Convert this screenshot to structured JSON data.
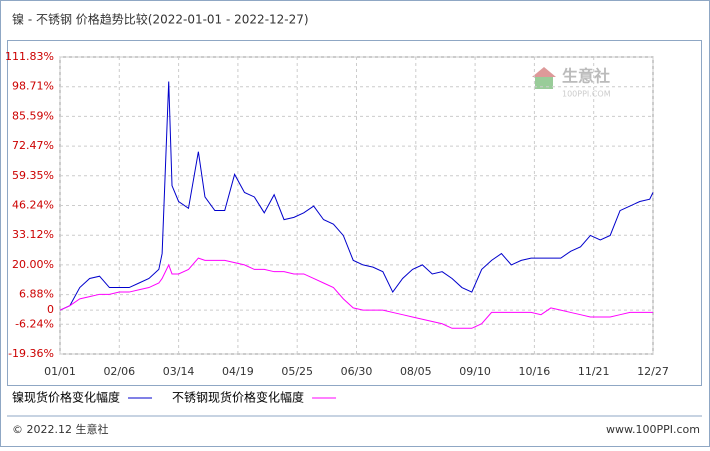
{
  "chart_data": {
    "type": "line",
    "title": "镍 - 不锈钢 价格趋势比较(2022-01-01 - 2022-12-27)",
    "x": [
      "01/01",
      "01/07",
      "01/13",
      "01/19",
      "01/25",
      "01/31",
      "02/06",
      "02/12",
      "02/18",
      "02/24",
      "03/02",
      "03/04",
      "03/08",
      "03/10",
      "03/14",
      "03/20",
      "03/26",
      "03/30",
      "04/05",
      "04/11",
      "04/17",
      "04/23",
      "04/29",
      "05/05",
      "05/11",
      "05/17",
      "05/23",
      "05/29",
      "06/04",
      "06/10",
      "06/16",
      "06/22",
      "06/28",
      "07/04",
      "07/10",
      "07/16",
      "07/22",
      "07/28",
      "08/03",
      "08/09",
      "08/15",
      "08/21",
      "08/27",
      "09/02",
      "09/08",
      "09/14",
      "09/20",
      "09/26",
      "10/02",
      "10/08",
      "10/14",
      "10/20",
      "10/26",
      "11/01",
      "11/07",
      "11/13",
      "11/19",
      "11/25",
      "12/01",
      "12/07",
      "12/13",
      "12/19",
      "12/25",
      "12/27"
    ],
    "series": [
      {
        "name": "镍现货价格变化幅度",
        "color": "#0000cc",
        "values": [
          0,
          2,
          10,
          14,
          15,
          10,
          10,
          10,
          12,
          14,
          18,
          25,
          101,
          55,
          48,
          45,
          70,
          50,
          44,
          44,
          60,
          52,
          50,
          43,
          51,
          40,
          41,
          43,
          46,
          40,
          38,
          33,
          22,
          20,
          19,
          17,
          8,
          14,
          18,
          20,
          16,
          17,
          14,
          10,
          8,
          18,
          22,
          25,
          20,
          22,
          23,
          23,
          23,
          23,
          26,
          28,
          33,
          31,
          33,
          44,
          46,
          48,
          49,
          52
        ]
      },
      {
        "name": "不锈钢现货价格变化幅度",
        "color": "#ff00ff",
        "values": [
          0,
          2,
          5,
          6,
          7,
          7,
          8,
          8,
          9,
          10,
          12,
          14,
          20,
          16,
          16,
          18,
          23,
          22,
          22,
          22,
          21,
          20,
          18,
          18,
          17,
          17,
          16,
          16,
          14,
          12,
          10,
          5,
          1,
          0,
          0,
          0,
          -1,
          -2,
          -3,
          -4,
          -5,
          -6,
          -8,
          -8,
          -8,
          -6,
          -1,
          -1,
          -1,
          -1,
          -1,
          -2,
          1,
          0,
          -1,
          -2,
          -3,
          -3,
          -3,
          -2,
          -1,
          -1,
          -1,
          -1
        ]
      }
    ],
    "xlim": [
      "01/01",
      "12/27"
    ],
    "xticks": [
      "01/01",
      "02/06",
      "03/14",
      "04/19",
      "05/25",
      "06/30",
      "08/05",
      "09/10",
      "10/16",
      "11/21",
      "12/27"
    ],
    "ylim": [
      -19.36,
      111.83
    ],
    "yticks": [
      {
        "value": -19.36,
        "label": "-19.36%"
      },
      {
        "value": -6.24,
        "label": "-6.24%"
      },
      0,
      {
        "value": 6.88,
        "label": "6.88%"
      },
      {
        "value": 20,
        "label": "20.00%"
      },
      {
        "value": 33.12,
        "label": "33.12%"
      },
      {
        "value": 46.24,
        "label": "46.24%"
      },
      {
        "value": 59.35,
        "label": "59.35%"
      },
      {
        "value": 72.47,
        "label": "72.47%"
      },
      {
        "value": 85.59,
        "label": "85.59%"
      },
      {
        "value": 98.71,
        "label": "98.71%"
      },
      {
        "value": 111.83,
        "label": "111.83%"
      }
    ],
    "grid": true,
    "watermark": {
      "name": "生意社",
      "site": "100PPI.COM"
    },
    "footer": {
      "copyright": "© 2022.12 生意社",
      "site": "www.100PPI.com"
    }
  }
}
